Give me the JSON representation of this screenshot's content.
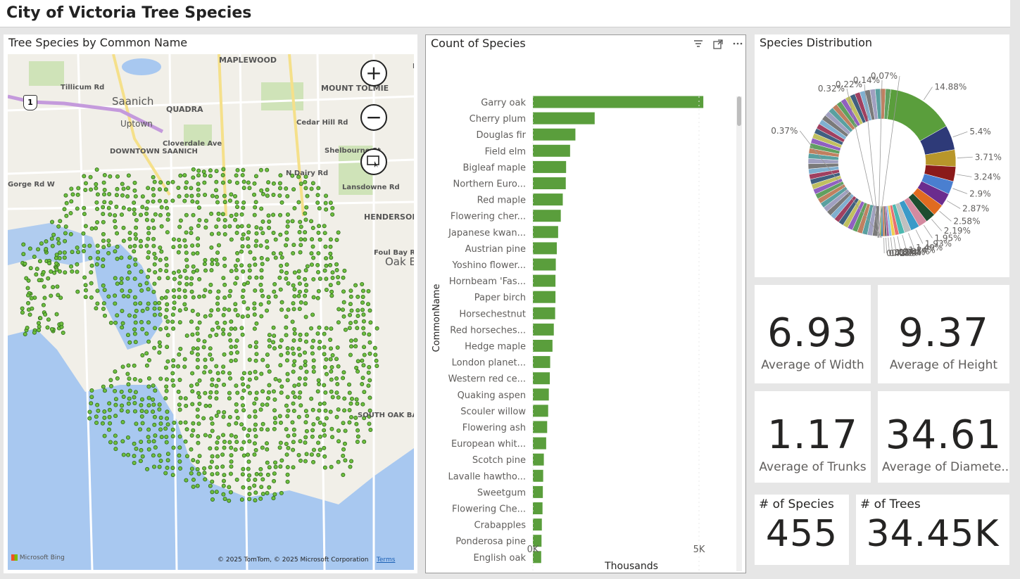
{
  "app": {
    "title": "City of Victoria Tree Species"
  },
  "map": {
    "title": "Tree Species by Common Name",
    "labels": [
      "MAPLEWOOD",
      "Saanich",
      "QUADRA",
      "Uptown",
      "MOUNT TOLMIE",
      "DOWNTOWN SAANICH",
      "HENDERSON",
      "Oak B",
      "Gorge Rd W",
      "Tillicum Rd",
      "Lansdowne Rd",
      "Foul Bay Rd",
      "Cedar Hill Rd",
      "Shelbourne St",
      "Cloverdale Ave",
      "Blenkinsop Rd",
      "N Dairy Rd",
      "SOUTH OAK BAY"
    ],
    "attribution": "© 2025 TomTom, © 2025 Microsoft Corporation",
    "terms": "Terms",
    "bing": "Microsoft Bing",
    "highway_shield": "1",
    "zoom_in_icon": "plus-icon",
    "zoom_out_icon": "minus-icon",
    "select_icon": "lasso-select-icon",
    "colors": {
      "water": "#a8c8f0",
      "land": "#f1efe8",
      "park": "#cfe3b8",
      "dot": "#6fbf3f",
      "dot_stroke": "#2d6a1a"
    }
  },
  "bar_chart": {
    "title": "Count of Species",
    "header_icons": [
      "filter-icon",
      "focus-mode-icon",
      "more-options-icon"
    ]
  },
  "pie": {
    "title": "Species Distribution"
  },
  "cards": [
    {
      "value": "6.93",
      "label": "Average of Width"
    },
    {
      "value": "9.37",
      "label": "Average of Height"
    },
    {
      "value": "1.17",
      "label": "Average of Trunks"
    },
    {
      "value": "34.61",
      "label": "Average of Diamete..."
    }
  ],
  "kpis": [
    {
      "title": "# of Species",
      "value": "455"
    },
    {
      "title": "# of Trees",
      "value": "34.45K"
    }
  ],
  "chart_data": [
    {
      "type": "bar",
      "orientation": "horizontal",
      "title": "Count of Species",
      "xlabel": "Thousands",
      "ylabel": "CommonName",
      "xlim": [
        0,
        5.5
      ],
      "x_ticks": [
        "0K",
        "5K"
      ],
      "color": "#5a9e3c",
      "categories": [
        "Garry oak",
        "Cherry plum",
        "Douglas fir",
        "Field elm",
        "Bigleaf maple",
        "Northern Euro...",
        "Red maple",
        "Flowering cher...",
        "Japanese kwan...",
        "Austrian pine",
        "Yoshino flower...",
        "Hornbeam 'Fas...",
        "Paper birch",
        "Horsechestnut",
        "Red horseches...",
        "Hedge maple",
        "London planet...",
        "Western red ce...",
        "Quaking aspen",
        "Scouler willow",
        "Flowering ash",
        "European whit...",
        "Scotch pine",
        "Lavalle hawtho...",
        "Sweetgum",
        "Flowering Che...",
        "Crabapples",
        "Ponderosa pine",
        "English oak"
      ],
      "values": [
        5.13,
        1.86,
        1.28,
        1.12,
        1.0,
        0.99,
        0.9,
        0.84,
        0.76,
        0.72,
        0.69,
        0.68,
        0.68,
        0.67,
        0.63,
        0.59,
        0.52,
        0.51,
        0.48,
        0.46,
        0.43,
        0.4,
        0.33,
        0.31,
        0.3,
        0.29,
        0.27,
        0.26,
        0.25
      ]
    },
    {
      "type": "pie",
      "donut": true,
      "title": "Species Distribution",
      "labels": [
        "14.88%",
        "5.4%",
        "3.71%",
        "3.24%",
        "2.9%",
        "2.87%",
        "2.58%",
        "2.19%",
        "1.95%",
        "1.93%",
        "1.49%",
        "1.24%",
        "0.85%",
        "0.74%",
        "0.57%",
        "0.51%",
        "0.44%",
        "0.42%",
        "0.37%",
        "0.32%",
        "0.22%",
        "0.14%",
        "0.07%"
      ],
      "values": [
        14.88,
        5.4,
        3.71,
        3.24,
        2.9,
        2.87,
        2.58,
        2.19,
        1.95,
        1.93,
        1.49,
        1.24,
        0.85,
        0.74,
        0.57,
        0.51,
        0.44,
        0.42,
        0.37,
        0.32,
        0.22,
        0.14,
        0.07
      ],
      "colors": [
        "#5a9e3c",
        "#2e3a78",
        "#b8962a",
        "#8b1a1a",
        "#4a7fd0",
        "#6b2c8e",
        "#e06b20",
        "#1d4d2f",
        "#d48aa0",
        "#3b9ac8",
        "#c0c0c0",
        "#4cb8b0",
        "#e87070",
        "#f0d050",
        "#8cc0e8",
        "#a060a0",
        "#606060",
        "#c07040",
        "#2070a0",
        "#80a040",
        "#d0a0d0",
        "#405070",
        "#b0b070"
      ]
    }
  ]
}
